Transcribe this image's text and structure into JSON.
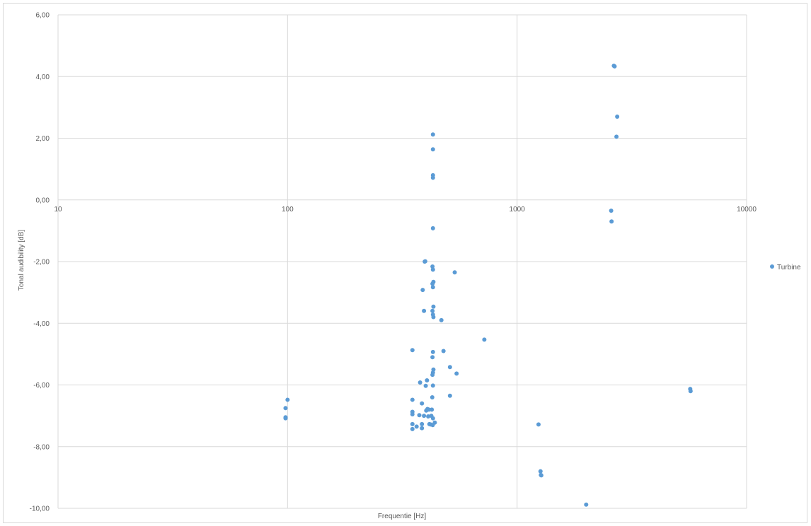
{
  "chart_data": {
    "type": "scatter",
    "title": "",
    "xlabel": "Frequentie [Hz]",
    "ylabel": "Tonal audibility [dB]",
    "x_scale": "log",
    "xlim": [
      10,
      10000
    ],
    "ylim": [
      -10,
      6
    ],
    "x_ticks": [
      10,
      100,
      1000,
      10000
    ],
    "x_tick_labels": [
      "10",
      "100",
      "1000",
      "10000"
    ],
    "y_ticks": [
      -10,
      -8,
      -6,
      -4,
      -2,
      0,
      2,
      4,
      6
    ],
    "y_tick_labels": [
      "-10,00",
      "-8,00",
      "-6,00",
      "-4,00",
      "-2,00",
      "0,00",
      "2,00",
      "4,00",
      "6,00"
    ],
    "grid": true,
    "legend_position": "right",
    "series": [
      {
        "name": "Turbine",
        "color": "#5b9bd5",
        "points": [
          [
            98,
            -6.75
          ],
          [
            98,
            -7.05
          ],
          [
            98,
            -7.08
          ],
          [
            100,
            -6.48
          ],
          [
            350,
            -4.87
          ],
          [
            350,
            -6.48
          ],
          [
            350,
            -6.87
          ],
          [
            350,
            -6.95
          ],
          [
            350,
            -7.27
          ],
          [
            350,
            -7.43
          ],
          [
            365,
            -7.35
          ],
          [
            375,
            -6.98
          ],
          [
            378,
            -5.92
          ],
          [
            385,
            -7.27
          ],
          [
            385,
            -6.6
          ],
          [
            385,
            -7.4
          ],
          [
            388,
            -2.92
          ],
          [
            393,
            -3.6
          ],
          [
            393,
            -7.0
          ],
          [
            396,
            -2.0
          ],
          [
            398,
            -1.99
          ],
          [
            400,
            -6.03
          ],
          [
            402,
            -6.83
          ],
          [
            405,
            -5.85
          ],
          [
            407,
            -6.78
          ],
          [
            410,
            -7.02
          ],
          [
            413,
            -6.8
          ],
          [
            415,
            -7.27
          ],
          [
            420,
            -7.28
          ],
          [
            423,
            -7.0
          ],
          [
            425,
            -6.8
          ],
          [
            427,
            -6.4
          ],
          [
            429,
            -7.3
          ],
          [
            430,
            2.12
          ],
          [
            430,
            1.64
          ],
          [
            430,
            0.8
          ],
          [
            430,
            0.72
          ],
          [
            430,
            -0.92
          ],
          [
            428,
            -2.16
          ],
          [
            430,
            -2.26
          ],
          [
            432,
            -2.66
          ],
          [
            428,
            -2.72
          ],
          [
            430,
            -2.83
          ],
          [
            432,
            -3.46
          ],
          [
            428,
            -3.6
          ],
          [
            430,
            -3.72
          ],
          [
            432,
            -3.8
          ],
          [
            430,
            -4.93
          ],
          [
            428,
            -5.1
          ],
          [
            432,
            -5.5
          ],
          [
            430,
            -5.6
          ],
          [
            428,
            -5.67
          ],
          [
            430,
            -6.02
          ],
          [
            430,
            -7.08
          ],
          [
            438,
            -7.22
          ],
          [
            468,
            -3.9
          ],
          [
            478,
            -4.9
          ],
          [
            510,
            -5.42
          ],
          [
            510,
            -6.35
          ],
          [
            535,
            -2.35
          ],
          [
            545,
            -5.63
          ],
          [
            720,
            -4.53
          ],
          [
            1240,
            -7.28
          ],
          [
            1265,
            -8.8
          ],
          [
            1270,
            -8.92
          ],
          [
            1275,
            -8.93
          ],
          [
            2000,
            -9.88
          ],
          [
            2570,
            -0.35
          ],
          [
            2580,
            -0.7
          ],
          [
            2640,
            4.35
          ],
          [
            2660,
            4.33
          ],
          [
            2730,
            2.7
          ],
          [
            2710,
            2.05
          ],
          [
            5680,
            -6.13
          ],
          [
            5700,
            -6.2
          ]
        ]
      }
    ]
  }
}
